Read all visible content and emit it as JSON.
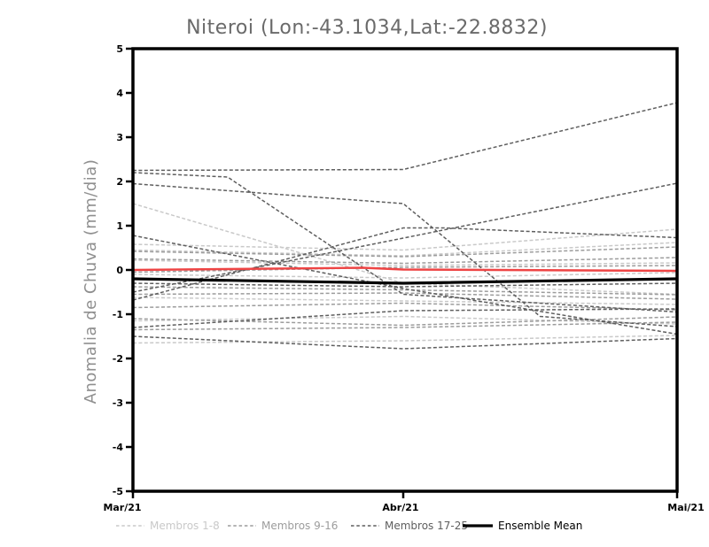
{
  "title": "Niteroi (Lon:-43.1034,Lat:-22.8832)",
  "chart_data": {
    "type": "line",
    "title": "Niteroi (Lon:-43.1034,Lat:-22.8832)",
    "ylabel": "Anomalia de Chuva (mm/dia)",
    "xlabel": "",
    "x_tick_labels": [
      "Mar/21",
      "Abr/21",
      "Mai/21"
    ],
    "y_ticks": [
      5,
      4,
      3,
      2,
      1,
      0,
      -1,
      -2,
      -3,
      -4,
      -5
    ],
    "ylim": [
      -5,
      5
    ],
    "grid": false,
    "legend_position": "bottom",
    "legend": [
      {
        "label": "Membros 1-8",
        "color": "#c9c9c9",
        "style": "dashed"
      },
      {
        "label": "Membros 9-16",
        "color": "#9c9c9c",
        "style": "dashed"
      },
      {
        "label": "Membros 17-25",
        "color": "#5e5e5e",
        "style": "dashed"
      },
      {
        "label": "Ensemble Mean",
        "color": "#000000",
        "style": "solid"
      }
    ],
    "members": [
      {
        "group": "Membros 1-8",
        "color": "#c9c9c9",
        "style": "dashed",
        "lines": [
          [
            [
              0,
              1.5
            ],
            [
              1,
              -0.3
            ],
            [
              2,
              -0.55
            ]
          ],
          [
            [
              0,
              0.58
            ],
            [
              1,
              0.45
            ],
            [
              2,
              0.92
            ]
          ],
          [
            [
              0,
              0.45
            ],
            [
              1,
              0.32
            ],
            [
              2,
              0.62
            ]
          ],
          [
            [
              0,
              0.22
            ],
            [
              1,
              0.1
            ],
            [
              2,
              0.16
            ]
          ],
          [
            [
              0,
              -0.1
            ],
            [
              1,
              -0.18
            ],
            [
              2,
              -0.06
            ]
          ],
          [
            [
              0,
              -0.62
            ],
            [
              1,
              -0.7
            ],
            [
              2,
              -0.78
            ]
          ],
          [
            [
              0,
              -1.15
            ],
            [
              1,
              -1.05
            ],
            [
              2,
              -1.22
            ]
          ],
          [
            [
              0,
              -1.65
            ],
            [
              1,
              -1.6
            ],
            [
              2,
              -1.48
            ]
          ]
        ]
      },
      {
        "group": "Membros 9-16",
        "color": "#9c9c9c",
        "style": "dashed",
        "lines": [
          [
            [
              0,
              0.42
            ],
            [
              1,
              0.3
            ],
            [
              2,
              0.52
            ]
          ],
          [
            [
              0,
              0.25
            ],
            [
              1,
              0.15
            ],
            [
              2,
              0.28
            ]
          ],
          [
            [
              0,
              -0.05
            ],
            [
              1,
              0.06
            ],
            [
              2,
              0.1
            ]
          ],
          [
            [
              0,
              -0.38
            ],
            [
              1,
              -0.45
            ],
            [
              2,
              -0.56
            ]
          ],
          [
            [
              0,
              -0.55
            ],
            [
              1,
              -0.52
            ],
            [
              2,
              -0.66
            ]
          ],
          [
            [
              0,
              -0.85
            ],
            [
              1,
              -0.75
            ],
            [
              2,
              -0.9
            ]
          ],
          [
            [
              0,
              -1.1
            ],
            [
              1,
              -1.25
            ],
            [
              2,
              -1.06
            ]
          ],
          [
            [
              0,
              -1.35
            ],
            [
              1,
              -1.3
            ],
            [
              2,
              -1.18
            ]
          ]
        ]
      },
      {
        "group": "Membros 17-25",
        "color": "#5e5e5e",
        "style": "dashed",
        "lines": [
          [
            [
              0,
              2.25
            ],
            [
              1,
              2.27
            ],
            [
              2,
              3.78
            ]
          ],
          [
            [
              0,
              2.2
            ],
            [
              0.35,
              2.1
            ],
            [
              1,
              -0.55
            ],
            [
              2,
              -0.95
            ]
          ],
          [
            [
              0,
              1.95
            ],
            [
              1,
              1.5
            ],
            [
              1.5,
              -1.05
            ],
            [
              2,
              -1.28
            ]
          ],
          [
            [
              0,
              -0.5
            ],
            [
              1,
              0.72
            ],
            [
              2,
              1.96
            ]
          ],
          [
            [
              0,
              -0.68
            ],
            [
              1,
              0.95
            ],
            [
              1.15,
              0.95
            ],
            [
              2,
              0.73
            ]
          ],
          [
            [
              0,
              -0.3
            ],
            [
              1,
              -0.38
            ],
            [
              2,
              -0.3
            ]
          ],
          [
            [
              0,
              0.78
            ],
            [
              1,
              -0.42
            ],
            [
              2,
              -1.45
            ]
          ],
          [
            [
              0,
              -1.3
            ],
            [
              1,
              -0.92
            ],
            [
              2,
              -0.88
            ]
          ],
          [
            [
              0,
              -1.5
            ],
            [
              1,
              -1.78
            ],
            [
              2,
              -1.55
            ]
          ]
        ]
      }
    ],
    "reference_line": {
      "color": "#ee4444",
      "points": [
        [
          0,
          0.0
        ],
        [
          0.85,
          0.05
        ],
        [
          1,
          0.01
        ],
        [
          2,
          -0.02
        ]
      ]
    },
    "ensemble_mean": {
      "label": "Ensemble Mean",
      "color": "#000000",
      "points": [
        [
          0,
          -0.2
        ],
        [
          1,
          -0.3
        ],
        [
          2,
          -0.2
        ]
      ]
    }
  }
}
